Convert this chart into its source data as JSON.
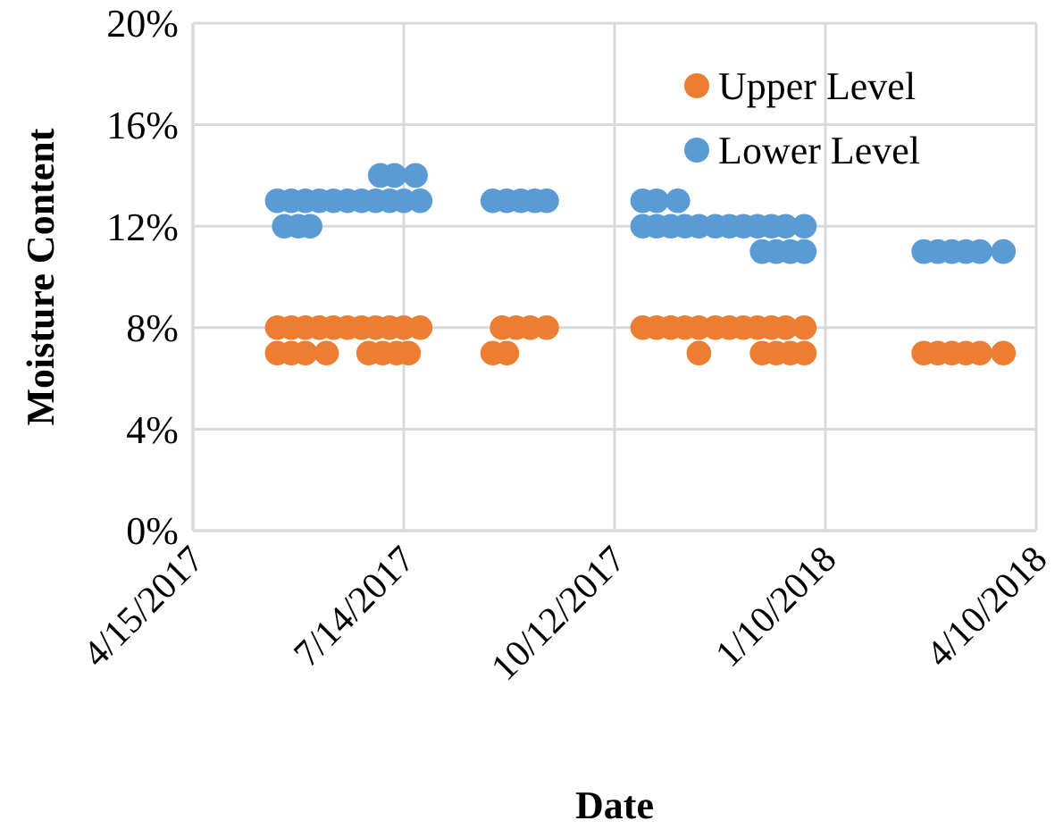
{
  "chart_data": {
    "type": "scatter",
    "xlabel": "Date",
    "ylabel": "Moisture Content",
    "xlim": [
      "2017-04-15",
      "2018-04-10"
    ],
    "xticks": [
      {
        "value": "2017-04-15",
        "label": "4/15/2017"
      },
      {
        "value": "2017-07-14",
        "label": "7/14/2017"
      },
      {
        "value": "2017-10-12",
        "label": "10/12/2017"
      },
      {
        "value": "2018-01-10",
        "label": "1/10/2018"
      },
      {
        "value": "2018-04-10",
        "label": "4/10/2018"
      }
    ],
    "ylim": [
      0,
      20
    ],
    "yticks": [
      {
        "value": 0,
        "label": "0%"
      },
      {
        "value": 4,
        "label": "4%"
      },
      {
        "value": 8,
        "label": "8%"
      },
      {
        "value": 12,
        "label": "12%"
      },
      {
        "value": 16,
        "label": "16%"
      },
      {
        "value": 20,
        "label": "20%"
      }
    ],
    "grid": true,
    "legend": "top right",
    "marker": "circle",
    "series": [
      {
        "name": "Upper Level",
        "color": "#ed7d31",
        "x": [
          "2017-05-21",
          "2017-05-27",
          "2017-06-02",
          "2017-06-08",
          "2017-06-14",
          "2017-06-20",
          "2017-06-26",
          "2017-07-02",
          "2017-07-08",
          "2017-07-14",
          "2017-07-21",
          "2017-05-21",
          "2017-05-27",
          "2017-06-02",
          "2017-06-11",
          "2017-06-29",
          "2017-07-05",
          "2017-07-11",
          "2017-07-16",
          "2017-08-25",
          "2017-08-31",
          "2017-09-06",
          "2017-09-13",
          "2017-08-21",
          "2017-08-27",
          "2017-10-24",
          "2017-10-30",
          "2017-11-05",
          "2017-11-11",
          "2017-11-17",
          "2017-11-24",
          "2017-11-30",
          "2017-12-06",
          "2017-12-12",
          "2017-12-18",
          "2017-12-24",
          "2018-01-01",
          "2017-11-17",
          "2017-12-14",
          "2017-12-20",
          "2017-12-26",
          "2018-01-01",
          "2018-02-21",
          "2018-02-27",
          "2018-03-05",
          "2018-03-11",
          "2018-03-17",
          "2018-03-27"
        ],
        "values": [
          8,
          8,
          8,
          8,
          8,
          8,
          8,
          8,
          8,
          8,
          8,
          7,
          7,
          7,
          7,
          7,
          7,
          7,
          7,
          8,
          8,
          8,
          8,
          7,
          7,
          8,
          8,
          8,
          8,
          8,
          8,
          8,
          8,
          8,
          8,
          8,
          8,
          7,
          7,
          7,
          7,
          7,
          7,
          7,
          7,
          7,
          7,
          7
        ]
      },
      {
        "name": "Lower Level",
        "color": "#5b9bd5",
        "x": [
          "2017-05-21",
          "2017-05-27",
          "2017-06-02",
          "2017-06-08",
          "2017-06-14",
          "2017-06-20",
          "2017-06-26",
          "2017-07-02",
          "2017-07-08",
          "2017-07-14",
          "2017-07-21",
          "2017-05-24",
          "2017-05-30",
          "2017-06-04",
          "2017-07-04",
          "2017-07-10",
          "2017-07-19",
          "2017-08-21",
          "2017-08-27",
          "2017-09-02",
          "2017-09-08",
          "2017-09-13",
          "2017-10-24",
          "2017-10-30",
          "2017-11-08",
          "2017-10-24",
          "2017-10-30",
          "2017-11-05",
          "2017-11-11",
          "2017-11-17",
          "2017-11-24",
          "2017-11-30",
          "2017-12-06",
          "2017-12-12",
          "2017-12-18",
          "2017-12-24",
          "2018-01-01",
          "2017-12-14",
          "2017-12-20",
          "2017-12-26",
          "2018-01-01",
          "2018-02-21",
          "2018-02-27",
          "2018-03-05",
          "2018-03-11",
          "2018-03-17",
          "2018-03-27"
        ],
        "values": [
          13,
          13,
          13,
          13,
          13,
          13,
          13,
          13,
          13,
          13,
          13,
          12,
          12,
          12,
          14,
          14,
          14,
          13,
          13,
          13,
          13,
          13,
          13,
          13,
          13,
          12,
          12,
          12,
          12,
          12,
          12,
          12,
          12,
          12,
          12,
          12,
          12,
          11,
          11,
          11,
          11,
          11,
          11,
          11,
          11,
          11,
          11
        ]
      }
    ]
  }
}
